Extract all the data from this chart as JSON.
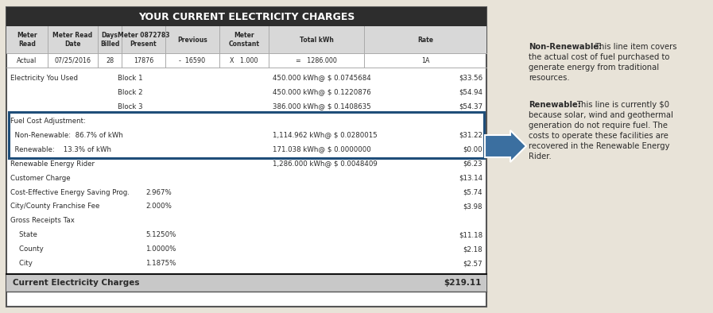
{
  "title": "YOUR CURRENT ELECTRICITY CHARGES",
  "title_bg": "#2d2d2d",
  "title_color": "#ffffff",
  "bg_color": "#e8e3d8",
  "table_bg": "#ffffff",
  "header_bg": "#d8d8d8",
  "highlight_box_color": "#1f4e79",
  "arrow_color": "#3b6fa0",
  "footer_bg": "#c8c8c8",
  "text_color": "#2a2a2a",
  "col_sep_color": "#aaaaaa",
  "border_color": "#555555",
  "header_cols": [
    "Meter\nRead",
    "Meter Read\nDate",
    "Days\nBilled",
    "Meter 0872783\nPresent",
    "Previous",
    "Meter\nConstant",
    "Total kWh",
    "Rate"
  ],
  "data_row": [
    "Actual",
    "07/25/2016",
    "28",
    "17876",
    "-  16590",
    "X   1.000",
    "=   1286.000",
    "1A"
  ],
  "body_rows": [
    {
      "label": "Electricity You Used",
      "col2": "Block 1",
      "col3": "",
      "col4": "450.000 kWh@ $ 0.0745684",
      "col5": "$33.56",
      "bold_label": false
    },
    {
      "label": "",
      "col2": "Block 2",
      "col3": "",
      "col4": "450.000 kWh@ $ 0.1220876",
      "col5": "$54.94",
      "bold_label": false
    },
    {
      "label": "",
      "col2": "Block 3",
      "col3": "",
      "col4": "386.000 kWh@ $ 0.1408635",
      "col5": "$54.37",
      "bold_label": false
    },
    {
      "label": "Fuel Cost Adjustment:",
      "col2": "",
      "col3": "",
      "col4": "",
      "col5": "",
      "bold_label": false,
      "hl_start": true
    },
    {
      "label": "  Non-Renewable:  86.7% of kWh",
      "col2": "",
      "col3": "",
      "col4": "1,114.962 kWh@ $ 0.0280015",
      "col5": "$31.22",
      "bold_label": false,
      "hl": true
    },
    {
      "label": "  Renewable:    13.3% of kWh",
      "col2": "",
      "col3": "",
      "col4": "171.038 kWh@ $ 0.0000000",
      "col5": "$0.00",
      "bold_label": false,
      "hl": true,
      "hl_end": true
    },
    {
      "label": "Renewable Energy Rider",
      "col2": "",
      "col3": "",
      "col4": "1,286.000 kWh@ $ 0.0048409",
      "col5": "$6.23",
      "bold_label": false
    },
    {
      "label": "Customer Charge",
      "col2": "",
      "col3": "",
      "col4": "",
      "col5": "$13.14",
      "bold_label": false
    },
    {
      "label": "Cost-Effective Energy Saving Prog.",
      "col2": "",
      "col3": "2.967%",
      "col4": "",
      "col5": "$5.74",
      "bold_label": false
    },
    {
      "label": "City/County Franchise Fee",
      "col2": "",
      "col3": "2.000%",
      "col4": "",
      "col5": "$3.98",
      "bold_label": false
    },
    {
      "label": "Gross Receipts Tax",
      "col2": "",
      "col3": "",
      "col4": "",
      "col5": "",
      "bold_label": false
    },
    {
      "label": "    State",
      "col2": "",
      "col3": "5.1250%",
      "col4": "",
      "col5": "$11.18",
      "bold_label": false
    },
    {
      "label": "    County",
      "col2": "",
      "col3": "1.0000%",
      "col4": "",
      "col5": "$2.18",
      "bold_label": false
    },
    {
      "label": "    City",
      "col2": "",
      "col3": "1.1875%",
      "col4": "",
      "col5": "$2.57",
      "bold_label": false
    }
  ],
  "footer_label": "Current Electricity Charges",
  "footer_value": "$219.11",
  "nr_bold": "Non-Renewable:",
  "nr_text": " This line item covers\nthe actual cost of fuel purchased to\ngenerate energy from traditional\nresources.",
  "r_bold": "Renewable:",
  "r_text": " This line is currently $0\nbecause solar, wind and geothermal\ngeneration do not require fuel. The\ncosts to operate these facilities are\nrecovered in the Renewable Energy\nRider."
}
